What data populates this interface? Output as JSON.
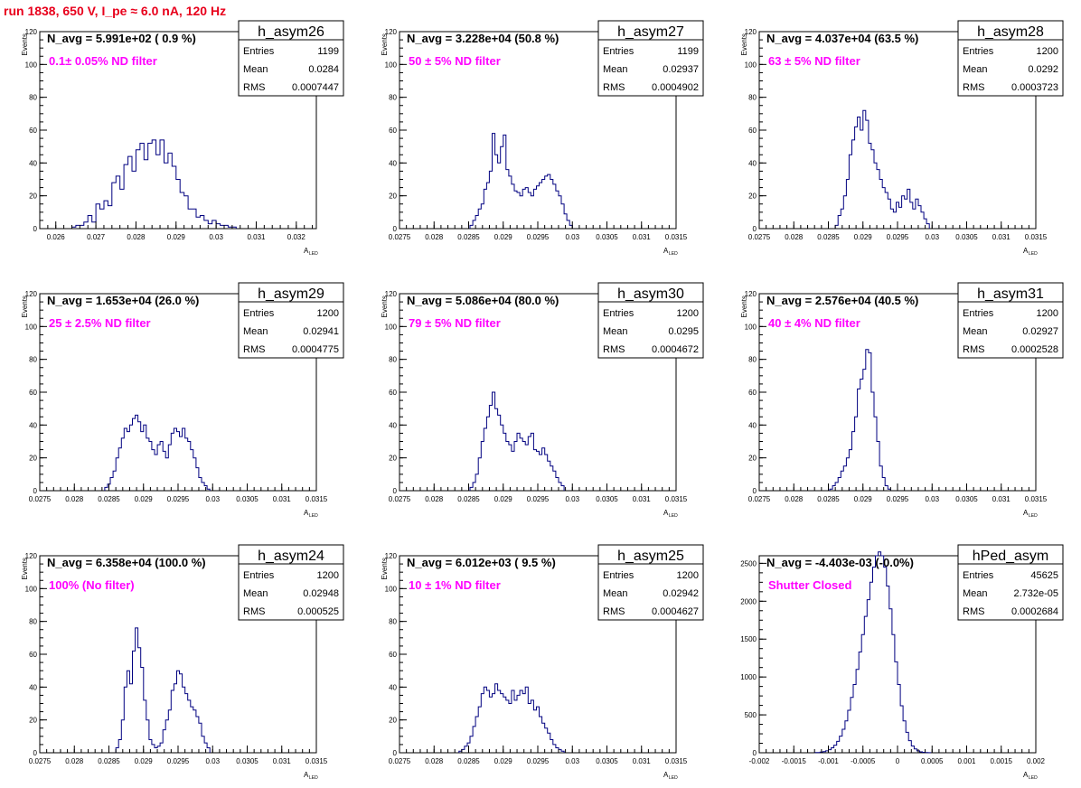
{
  "page_title": "run 1838,   650 V, I_pe ≈ 6.0 nA, 120 Hz",
  "stats_labels": {
    "entries": "Entries",
    "mean": "Mean",
    "rms": "RMS"
  },
  "colors": {
    "histogram": "#000080",
    "annotation": "#ff00ff",
    "title_red": "#e8001c"
  },
  "chart_data": [
    {
      "type": "histogram",
      "name": "h_asym26",
      "navg": "N_avg = 5.991e+02 ( 0.9 %)",
      "annotation": "0.1± 0.05% ND filter",
      "entries": "1199",
      "mean": "0.0284",
      "rms": "0.0007447",
      "ylabel": "Events",
      "xlabel": "A",
      "xlabel_sub": "LED",
      "xlim": [
        0.0256,
        0.0325
      ],
      "ylim": [
        0,
        120
      ],
      "xticks": [
        0.026,
        0.027,
        0.028,
        0.029,
        0.03,
        0.031,
        0.032
      ],
      "xtick_labels": [
        "0.026",
        "0.027",
        "0.028",
        "0.029",
        "0.03",
        "0.031",
        "0.032"
      ],
      "yticks": [
        0,
        20,
        40,
        60,
        80,
        100,
        120
      ],
      "ytick_labels": [
        "0",
        "20",
        "40",
        "60",
        "80",
        "100",
        "120"
      ],
      "minor_x_step": 0.0002,
      "bin_start": 0.0264,
      "bin_width": 0.0001,
      "counts": [
        1,
        2,
        2,
        4,
        8,
        4,
        15,
        12,
        17,
        14,
        28,
        32,
        24,
        39,
        44,
        35,
        48,
        52,
        42,
        52,
        54,
        45,
        54,
        40,
        46,
        38,
        30,
        22,
        20,
        12,
        12,
        7,
        8,
        5,
        3,
        5,
        3,
        2,
        2,
        1,
        1
      ]
    },
    {
      "type": "histogram",
      "name": "h_asym27",
      "navg": "N_avg = 3.228e+04 (50.8 %)",
      "annotation": "50 ± 5% ND filter",
      "entries": "1199",
      "mean": "0.02937",
      "rms": "0.0004902",
      "ylabel": "Events",
      "xlabel": "A",
      "xlabel_sub": "LED",
      "xlim": [
        0.0275,
        0.0315
      ],
      "ylim": [
        0,
        120
      ],
      "xticks": [
        0.0275,
        0.028,
        0.0285,
        0.029,
        0.0295,
        0.03,
        0.0305,
        0.031,
        0.0315
      ],
      "xtick_labels": [
        "0.0275",
        "0.028",
        "0.0285",
        "0.029",
        "0.0295",
        "0.03",
        "0.0305",
        "0.031",
        "0.0315"
      ],
      "yticks": [
        0,
        20,
        40,
        60,
        80,
        100,
        120
      ],
      "ytick_labels": [
        "0",
        "20",
        "40",
        "60",
        "80",
        "100",
        "120"
      ],
      "minor_x_step": 0.0001,
      "bin_start": 0.02852,
      "bin_width": 4e-05,
      "counts": [
        2,
        5,
        8,
        12,
        15,
        24,
        28,
        35,
        58,
        45,
        40,
        50,
        57,
        36,
        32,
        27,
        23,
        22,
        20,
        24,
        25,
        22,
        20,
        24,
        26,
        28,
        30,
        32,
        33,
        30,
        27,
        23,
        20,
        15,
        9,
        5,
        2
      ]
    },
    {
      "type": "histogram",
      "name": "h_asym28",
      "navg": "N_avg = 4.037e+04 (63.5 %)",
      "annotation": "63 ± 5% ND filter",
      "entries": "1200",
      "mean": "0.0292",
      "rms": "0.0003723",
      "ylabel": "Events",
      "xlabel": "A",
      "xlabel_sub": "LED",
      "xlim": [
        0.0275,
        0.0315
      ],
      "ylim": [
        0,
        120
      ],
      "xticks": [
        0.0275,
        0.028,
        0.0285,
        0.029,
        0.0295,
        0.03,
        0.0305,
        0.031,
        0.0315
      ],
      "xtick_labels": [
        "0.0275",
        "0.028",
        "0.0285",
        "0.029",
        "0.0295",
        "0.03",
        "0.0305",
        "0.031",
        "0.0315"
      ],
      "yticks": [
        0,
        20,
        40,
        60,
        80,
        100,
        120
      ],
      "ytick_labels": [
        "0",
        "20",
        "40",
        "60",
        "80",
        "100",
        "120"
      ],
      "minor_x_step": 0.0001,
      "bin_start": 0.0286,
      "bin_width": 4e-05,
      "counts": [
        2,
        8,
        12,
        20,
        30,
        45,
        54,
        62,
        68,
        60,
        72,
        66,
        52,
        48,
        40,
        36,
        30,
        25,
        22,
        18,
        12,
        10,
        16,
        13,
        20,
        18,
        24,
        16,
        12,
        18,
        14,
        10,
        6,
        3
      ]
    },
    {
      "type": "histogram",
      "name": "h_asym29",
      "navg": "N_avg = 1.653e+04 (26.0 %)",
      "annotation": "25 ± 2.5% ND filter",
      "entries": "1200",
      "mean": "0.02941",
      "rms": "0.0004775",
      "ylabel": "Events",
      "xlabel": "A",
      "xlabel_sub": "LED",
      "xlim": [
        0.0275,
        0.0315
      ],
      "ylim": [
        0,
        120
      ],
      "xticks": [
        0.0275,
        0.028,
        0.0285,
        0.029,
        0.0295,
        0.03,
        0.0305,
        0.031,
        0.0315
      ],
      "xtick_labels": [
        "0.0275",
        "0.028",
        "0.0285",
        "0.029",
        "0.0295",
        "0.03",
        "0.0305",
        "0.031",
        "0.0315"
      ],
      "yticks": [
        0,
        20,
        40,
        60,
        80,
        100,
        120
      ],
      "ytick_labels": [
        "0",
        "20",
        "40",
        "60",
        "80",
        "100",
        "120"
      ],
      "minor_x_step": 0.0001,
      "bin_start": 0.02844,
      "bin_width": 4e-05,
      "counts": [
        2,
        4,
        8,
        12,
        20,
        26,
        32,
        38,
        36,
        40,
        44,
        46,
        42,
        36,
        40,
        32,
        30,
        25,
        22,
        28,
        30,
        24,
        20,
        28,
        35,
        38,
        36,
        33,
        38,
        32,
        30,
        25,
        20,
        14,
        8,
        5,
        3,
        1
      ]
    },
    {
      "type": "histogram",
      "name": "h_asym30",
      "navg": "N_avg = 5.086e+04 (80.0 %)",
      "annotation": "79 ± 5% ND filter",
      "entries": "1200",
      "mean": "0.0295",
      "rms": "0.0004672",
      "ylabel": "Events",
      "xlabel": "A",
      "xlabel_sub": "LED",
      "xlim": [
        0.0275,
        0.0315
      ],
      "ylim": [
        0,
        120
      ],
      "xticks": [
        0.0275,
        0.028,
        0.0285,
        0.029,
        0.0295,
        0.03,
        0.0305,
        0.031,
        0.0315
      ],
      "xtick_labels": [
        "0.0275",
        "0.028",
        "0.0285",
        "0.029",
        "0.0295",
        "0.03",
        "0.0305",
        "0.031",
        "0.0315"
      ],
      "yticks": [
        0,
        20,
        40,
        60,
        80,
        100,
        120
      ],
      "ytick_labels": [
        "0",
        "20",
        "40",
        "60",
        "80",
        "100",
        "120"
      ],
      "minor_x_step": 0.0001,
      "bin_start": 0.02852,
      "bin_width": 4e-05,
      "counts": [
        2,
        5,
        10,
        20,
        30,
        38,
        45,
        52,
        60,
        50,
        46,
        40,
        35,
        30,
        28,
        24,
        30,
        35,
        32,
        30,
        28,
        33,
        35,
        25,
        24,
        22,
        26,
        22,
        18,
        15,
        12,
        8,
        5,
        3
      ]
    },
    {
      "type": "histogram",
      "name": "h_asym31",
      "navg": "N_avg = 2.576e+04 (40.5 %)",
      "annotation": "40 ± 4% ND filter",
      "entries": "1200",
      "mean": "0.02927",
      "rms": "0.0002528",
      "ylabel": "Events",
      "xlabel": "A",
      "xlabel_sub": "LED",
      "xlim": [
        0.0275,
        0.0315
      ],
      "ylim": [
        0,
        120
      ],
      "xticks": [
        0.0275,
        0.028,
        0.0285,
        0.029,
        0.0295,
        0.03,
        0.0305,
        0.031,
        0.0315
      ],
      "xtick_labels": [
        "0.0275",
        "0.028",
        "0.0285",
        "0.029",
        "0.0295",
        "0.03",
        "0.0305",
        "0.031",
        "0.0315"
      ],
      "yticks": [
        0,
        20,
        40,
        60,
        80,
        100,
        120
      ],
      "ytick_labels": [
        "0",
        "20",
        "40",
        "60",
        "80",
        "100",
        "120"
      ],
      "minor_x_step": 0.0001,
      "bin_start": 0.02852,
      "bin_width": 4e-05,
      "counts": [
        1,
        3,
        5,
        8,
        12,
        15,
        20,
        25,
        36,
        45,
        62,
        68,
        74,
        86,
        84,
        60,
        45,
        30,
        15,
        8,
        3,
        1
      ]
    },
    {
      "type": "histogram",
      "name": "h_asym24",
      "navg": "N_avg = 6.358e+04 (100.0 %)",
      "annotation": "100% (No filter)",
      "entries": "1200",
      "mean": "0.02948",
      "rms": "0.000525",
      "ylabel": "Events",
      "xlabel": "A",
      "xlabel_sub": "LED",
      "xlim": [
        0.0275,
        0.0315
      ],
      "ylim": [
        0,
        120
      ],
      "xticks": [
        0.0275,
        0.028,
        0.0285,
        0.029,
        0.0295,
        0.03,
        0.0305,
        0.031,
        0.0315
      ],
      "xtick_labels": [
        "0.0275",
        "0.028",
        "0.0285",
        "0.029",
        "0.0295",
        "0.03",
        "0.0305",
        "0.031",
        "0.0315"
      ],
      "yticks": [
        0,
        20,
        40,
        60,
        80,
        100,
        120
      ],
      "ytick_labels": [
        "0",
        "20",
        "40",
        "60",
        "80",
        "100",
        "120"
      ],
      "minor_x_step": 0.0001,
      "bin_start": 0.0286,
      "bin_width": 4e-05,
      "counts": [
        3,
        8,
        20,
        40,
        50,
        42,
        62,
        76,
        64,
        52,
        32,
        20,
        8,
        5,
        3,
        4,
        6,
        14,
        20,
        26,
        38,
        42,
        50,
        48,
        40,
        36,
        32,
        28,
        26,
        22,
        18,
        10,
        6,
        3
      ]
    },
    {
      "type": "histogram",
      "name": "h_asym25",
      "navg": "N_avg = 6.012e+03 ( 9.5 %)",
      "annotation": "10 ± 1% ND filter",
      "entries": "1200",
      "mean": "0.02942",
      "rms": "0.0004627",
      "ylabel": "Events",
      "xlabel": "A",
      "xlabel_sub": "LED",
      "xlim": [
        0.0275,
        0.0315
      ],
      "ylim": [
        0,
        120
      ],
      "xticks": [
        0.0275,
        0.028,
        0.0285,
        0.029,
        0.0295,
        0.03,
        0.0305,
        0.031,
        0.0315
      ],
      "xtick_labels": [
        "0.0275",
        "0.028",
        "0.0285",
        "0.029",
        "0.0295",
        "0.03",
        "0.0305",
        "0.031",
        "0.0315"
      ],
      "yticks": [
        0,
        20,
        40,
        60,
        80,
        100,
        120
      ],
      "ytick_labels": [
        "0",
        "20",
        "40",
        "60",
        "80",
        "100",
        "120"
      ],
      "minor_x_step": 0.0001,
      "bin_start": 0.02836,
      "bin_width": 4e-05,
      "counts": [
        1,
        2,
        4,
        6,
        10,
        16,
        22,
        28,
        36,
        40,
        38,
        34,
        36,
        42,
        38,
        36,
        34,
        32,
        30,
        38,
        32,
        35,
        38,
        36,
        40,
        30,
        32,
        26,
        28,
        22,
        18,
        15,
        12,
        8,
        5,
        3,
        2,
        1
      ]
    },
    {
      "type": "histogram",
      "name": "hPed_asym",
      "navg": "N_avg = -4.403e-03 (-0.0%)",
      "annotation": "Shutter Closed",
      "entries": "45625",
      "mean": "2.732e-05",
      "rms": "0.0002684",
      "ylabel": "",
      "xlabel": "A",
      "xlabel_sub": "LED",
      "xlim": [
        -0.002,
        0.002
      ],
      "ylim": [
        0,
        2600
      ],
      "xticks": [
        -0.002,
        -0.0015,
        -0.001,
        -0.0005,
        0,
        0.0005,
        0.001,
        0.0015,
        0.002
      ],
      "xtick_labels": [
        "-0.002",
        "-0.0015",
        "-0.001",
        "-0.0005",
        "0",
        "0.0005",
        "0.001",
        "0.0015",
        "0.002"
      ],
      "yticks": [
        0,
        500,
        1000,
        1500,
        2000,
        2500
      ],
      "ytick_labels": [
        "0",
        "500",
        "1000",
        "1500",
        "2000",
        "2500"
      ],
      "minor_x_step": 0.0001,
      "bin_start": -0.0012,
      "bin_width": 4e-05,
      "counts": [
        2,
        4,
        8,
        15,
        25,
        40,
        65,
        100,
        150,
        220,
        310,
        420,
        560,
        730,
        900,
        1100,
        1330,
        1560,
        1800,
        2020,
        2250,
        2450,
        2600,
        2650,
        2600,
        2450,
        2200,
        1900,
        1560,
        1200,
        900,
        620,
        420,
        270,
        160,
        90,
        50,
        25,
        12,
        6,
        3,
        1
      ]
    }
  ]
}
